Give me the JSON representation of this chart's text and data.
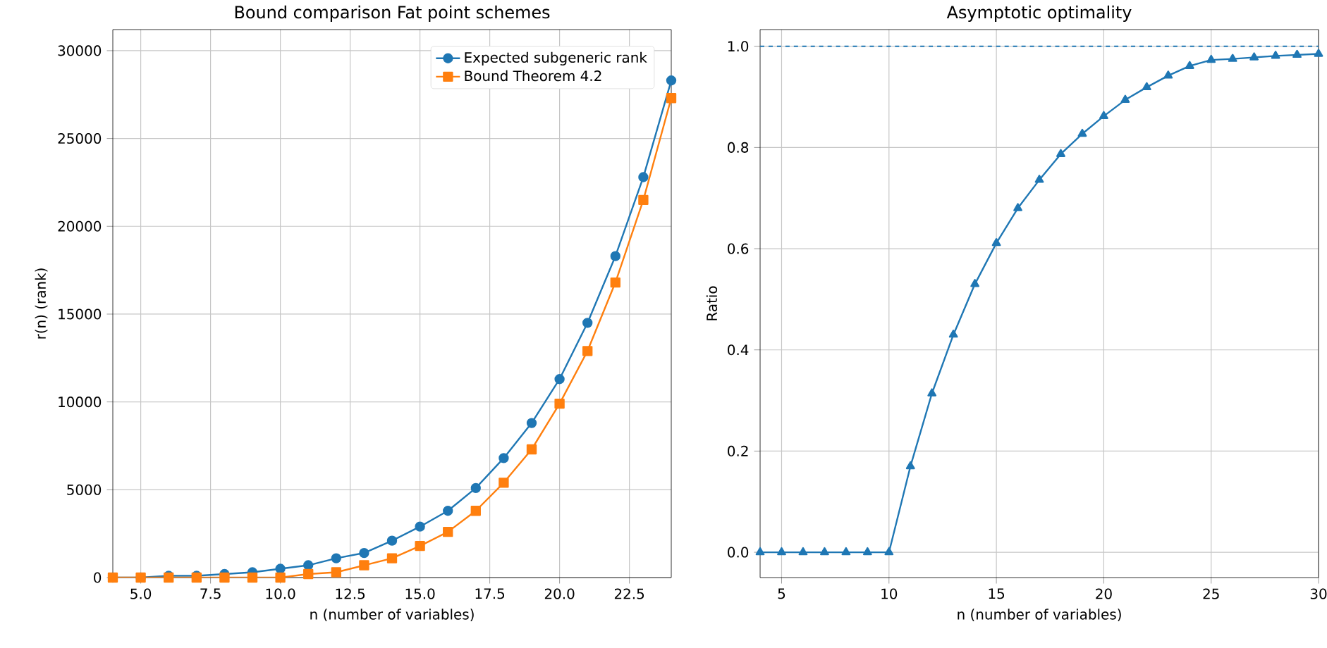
{
  "chart_data": [
    {
      "type": "line",
      "title": "Bound comparison Fat point schemes",
      "xlabel": "n (number of variables)",
      "ylabel": "r(n) (rank)",
      "x": [
        4,
        5,
        6,
        7,
        8,
        9,
        10,
        11,
        12,
        13,
        14,
        15,
        16,
        17,
        18,
        19,
        20,
        21,
        22,
        23,
        24
      ],
      "series": [
        {
          "name": "Expected subgeneric rank",
          "color": "#1f77b4",
          "marker": "circle",
          "values": [
            0,
            0,
            100,
            100,
            200,
            300,
            500,
            700,
            1100,
            1400,
            2100,
            2900,
            3800,
            5100,
            6800,
            8800,
            11300,
            14500,
            18300,
            22800,
            28300
          ]
        },
        {
          "name": "Bound Theorem 4.2",
          "color": "#ff7f0e",
          "marker": "square",
          "values": [
            0,
            0,
            0,
            0,
            0,
            0,
            0,
            200,
            300,
            700,
            1100,
            1800,
            2600,
            3800,
            5400,
            7300,
            9900,
            12900,
            16800,
            21500,
            27300
          ]
        }
      ],
      "xlim": [
        4,
        24
      ],
      "ylim": [
        0,
        31200
      ],
      "xticks": [
        {
          "value": 5,
          "label": "5.0"
        },
        {
          "value": 7.5,
          "label": "7.5"
        },
        {
          "value": 10,
          "label": "10.0"
        },
        {
          "value": 12.5,
          "label": "12.5"
        },
        {
          "value": 15,
          "label": "15.0"
        },
        {
          "value": 17.5,
          "label": "17.5"
        },
        {
          "value": 20,
          "label": "20.0"
        },
        {
          "value": 22.5,
          "label": "22.5"
        }
      ],
      "yticks": [
        0,
        5000,
        10000,
        15000,
        20000,
        25000,
        30000
      ],
      "grid": true,
      "legend": "top right"
    },
    {
      "type": "line",
      "title": "Asymptotic optimality",
      "xlabel": "n (number of variables)",
      "ylabel": "Ratio",
      "x": [
        4,
        5,
        6,
        7,
        8,
        9,
        10,
        11,
        12,
        13,
        14,
        15,
        16,
        17,
        18,
        19,
        20,
        21,
        22,
        23,
        24,
        25,
        26,
        27,
        28,
        29,
        30
      ],
      "series": [
        {
          "color": "#1f77b4",
          "marker": "triangle",
          "values": [
            0,
            0,
            0,
            0,
            0,
            0,
            0,
            0.17,
            0.314,
            0.43,
            0.53,
            0.611,
            0.68,
            0.736,
            0.787,
            0.827,
            0.862,
            0.894,
            0.919,
            0.942,
            0.961,
            0.973,
            0.975,
            0.978,
            0.981,
            0.983,
            0.985
          ]
        }
      ],
      "xlim": [
        4,
        30
      ],
      "ylim": [
        -0.05,
        1.033
      ],
      "xticks": [
        5,
        10,
        15,
        20,
        25,
        30
      ],
      "yticks": [
        {
          "value": 0,
          "label": "0.0"
        },
        {
          "value": 0.2,
          "label": "0.2"
        },
        {
          "value": 0.4,
          "label": "0.4"
        },
        {
          "value": 0.6,
          "label": "0.6"
        },
        {
          "value": 0.8,
          "label": "0.8"
        },
        {
          "value": 1,
          "label": "1.0"
        }
      ],
      "ref_lines": [
        {
          "axis": "y",
          "value": 1,
          "color": "#1f77b4",
          "line_style": "dashed"
        }
      ],
      "grid": true,
      "legend": false
    }
  ]
}
